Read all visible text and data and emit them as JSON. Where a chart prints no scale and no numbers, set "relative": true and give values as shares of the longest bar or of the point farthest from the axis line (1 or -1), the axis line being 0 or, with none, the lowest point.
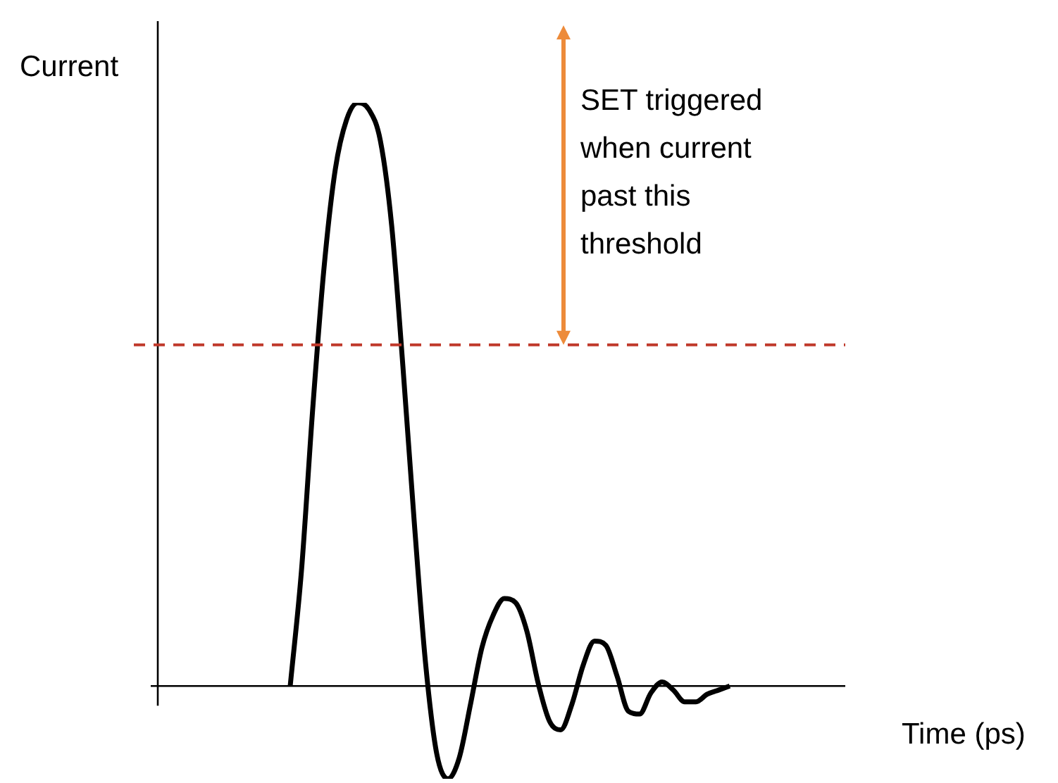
{
  "chart_data": {
    "type": "line",
    "relative": true,
    "xlabel": "Time (ps)",
    "ylabel": "Current",
    "categories": [
      null,
      null,
      null,
      null,
      null,
      null,
      null,
      null,
      null,
      null,
      null,
      null,
      null,
      null,
      null,
      null,
      null,
      null,
      null,
      null,
      null,
      null,
      null,
      null,
      null,
      null,
      null,
      null,
      null,
      null,
      null,
      null,
      null,
      null,
      null,
      null,
      null,
      null,
      null,
      null,
      null,
      null,
      null,
      null,
      null,
      null,
      null,
      null,
      null,
      null,
      null,
      null,
      null,
      null,
      null,
      null,
      null,
      null,
      null,
      null,
      null,
      null
    ],
    "series": [
      {
        "color": "#000000",
        "values": [
          null,
          null,
          null,
          null,
          null,
          null,
          null,
          null,
          null,
          null,
          null,
          null,
          0,
          0.198,
          0.476,
          0.717,
          0.886,
          0.971,
          1,
          0.988,
          0.935,
          0.79,
          0.548,
          0.283,
          0.041,
          -0.116,
          -0.159,
          -0.123,
          -0.031,
          0.065,
          0.121,
          0.15,
          0.143,
          0.094,
          0.005,
          -0.06,
          -0.075,
          -0.031,
          0.036,
          0.077,
          0.07,
          0.017,
          -0.043,
          -0.048,
          -0.012,
          0.007,
          -0.007,
          -0.027,
          -0.027,
          -0.014,
          -0.007,
          0,
          null,
          null,
          null,
          null,
          null,
          null,
          null,
          null,
          null,
          null
        ]
      }
    ],
    "ref_lines": [
      {
        "axis": "y",
        "value": 0.585,
        "color": "#c0392b",
        "line_style": "dashed"
      }
    ],
    "annotations": [
      "SET triggered when current past this threshold"
    ],
    "marker": "none",
    "line_style": "solid",
    "legend": false
  }
}
